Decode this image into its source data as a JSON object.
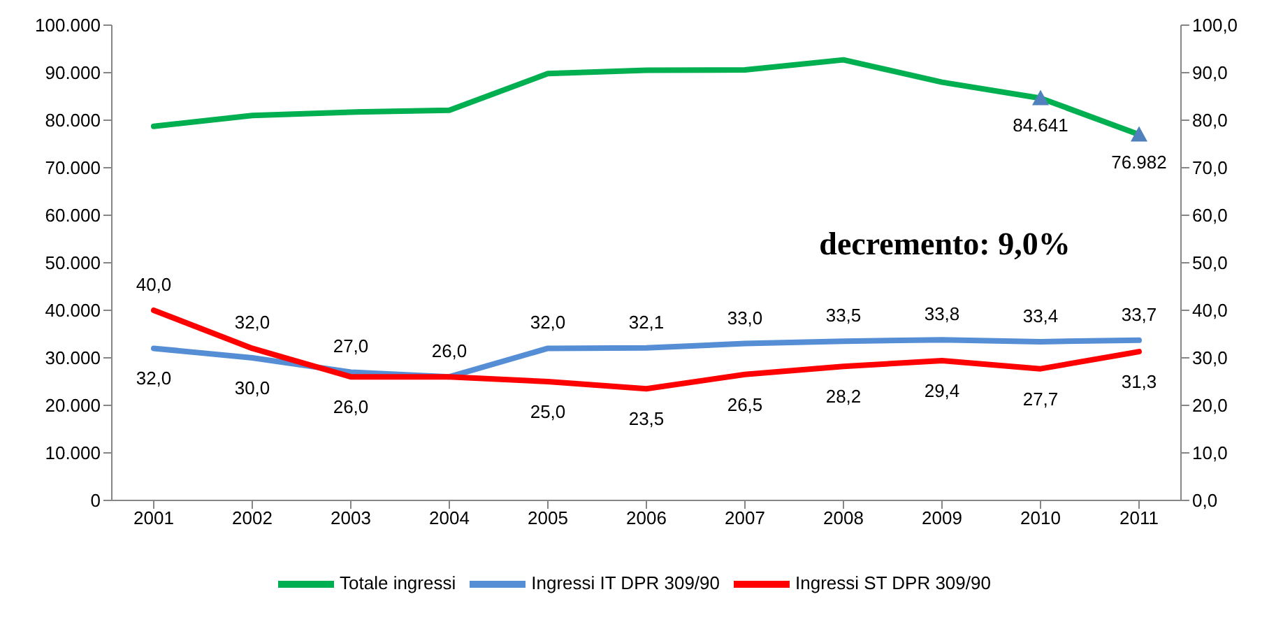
{
  "chart_data": {
    "type": "line",
    "categories": [
      "2001",
      "2002",
      "2003",
      "2004",
      "2005",
      "2006",
      "2007",
      "2008",
      "2009",
      "2010",
      "2011"
    ],
    "series": [
      {
        "name": "Totale ingressi",
        "color": "#00b050",
        "values": [
          78700,
          81000,
          81700,
          82100,
          89800,
          90500,
          90600,
          92700,
          88000,
          84641,
          76982
        ],
        "value_labels": [
          null,
          null,
          null,
          null,
          null,
          null,
          null,
          null,
          null,
          "84.641",
          "76.982"
        ]
      },
      {
        "name": "Ingressi IT DPR 309/90",
        "color": "#558ed5",
        "axis": "y2",
        "values": [
          32.0,
          30.0,
          27.0,
          26.0,
          32.0,
          32.1,
          33.0,
          33.5,
          33.8,
          33.4,
          33.7
        ],
        "value_labels": [
          "32,0",
          "30,0",
          "27,0",
          null,
          "32,0",
          "32,1",
          "33,0",
          "33,5",
          "33,8",
          "33,4",
          "33,7"
        ]
      },
      {
        "name": "Ingressi ST DPR 309/90",
        "color": "#ff0000",
        "axis": "y2",
        "values": [
          40.0,
          32.0,
          26.0,
          26.0,
          25.0,
          23.5,
          26.5,
          28.2,
          29.4,
          27.7,
          31.3
        ],
        "value_labels": [
          "40,0",
          "32,0",
          "26,0",
          "26,0",
          "25,0",
          "23,5",
          "26,5",
          "28,2",
          "29,4",
          "27,7",
          "31,3"
        ]
      }
    ],
    "ylim": [
      0,
      100000
    ],
    "yticks": [
      {
        "value": 0,
        "label": "0"
      },
      {
        "value": 10000,
        "label": "10.000"
      },
      {
        "value": 20000,
        "label": "20.000"
      },
      {
        "value": 30000,
        "label": "30.000"
      },
      {
        "value": 40000,
        "label": "40.000"
      },
      {
        "value": 50000,
        "label": "50.000"
      },
      {
        "value": 60000,
        "label": "60.000"
      },
      {
        "value": 70000,
        "label": "70.000"
      },
      {
        "value": 80000,
        "label": "80.000"
      },
      {
        "value": 90000,
        "label": "90.000"
      },
      {
        "value": 100000,
        "label": "100.000"
      }
    ],
    "y2lim": [
      0,
      100
    ],
    "y2ticks": [
      {
        "value": 0,
        "label": "0,0"
      },
      {
        "value": 10,
        "label": "10,0"
      },
      {
        "value": 20,
        "label": "20,0"
      },
      {
        "value": 30,
        "label": "30,0"
      },
      {
        "value": 40,
        "label": "40,0"
      },
      {
        "value": 50,
        "label": "50,0"
      },
      {
        "value": 60,
        "label": "60,0"
      },
      {
        "value": 70,
        "label": "70,0"
      },
      {
        "value": 80,
        "label": "80,0"
      },
      {
        "value": 90,
        "label": "90,0"
      },
      {
        "value": 100,
        "label": "100,0"
      }
    ],
    "annotations": [
      "decremento: 9,0%"
    ],
    "grid": false,
    "legend": "bottom"
  }
}
